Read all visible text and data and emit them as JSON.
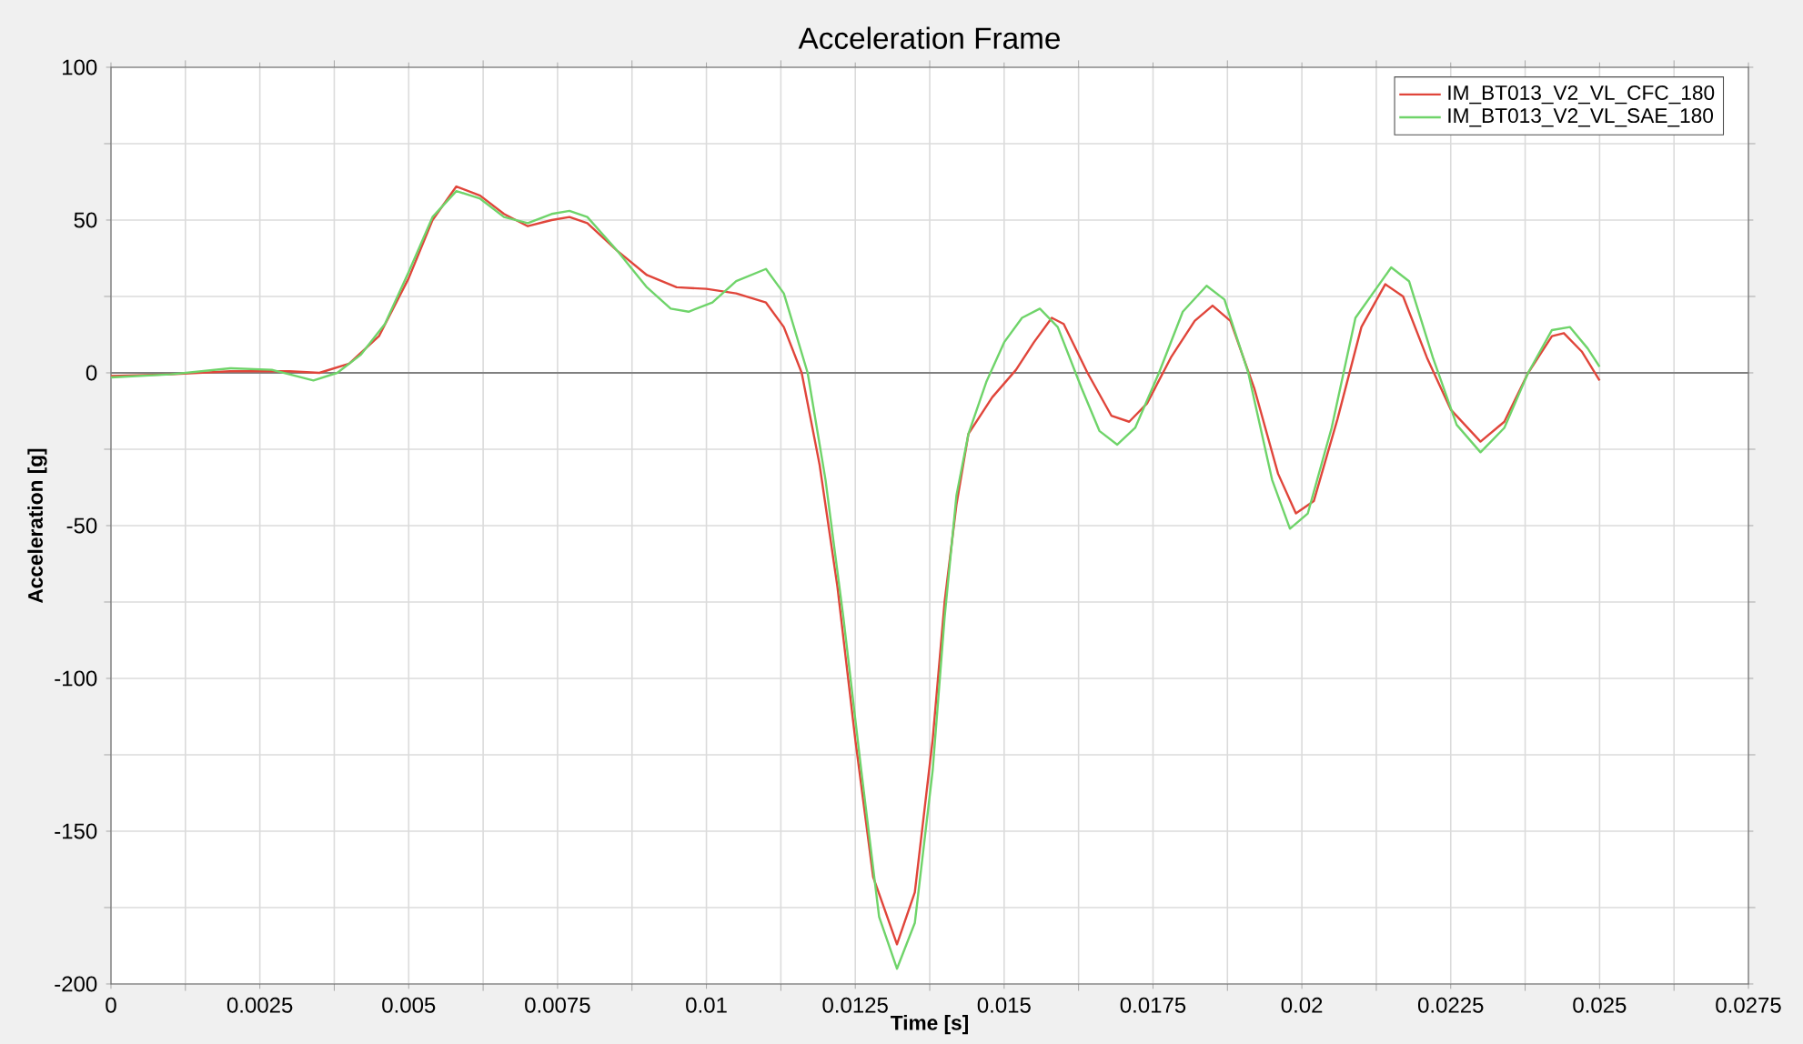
{
  "chart_data": {
    "type": "line",
    "title": "Acceleration Frame",
    "xlabel": "Time [s]",
    "ylabel": "Acceleration [g]",
    "xlim": [
      0,
      0.0275
    ],
    "ylim": [
      -200,
      100
    ],
    "xticks": [
      0,
      0.0025,
      0.005,
      0.0075,
      0.01,
      0.0125,
      0.015,
      0.0175,
      0.02,
      0.0225,
      0.025,
      0.0275
    ],
    "yticks": [
      -200,
      -150,
      -100,
      -50,
      0,
      50,
      100
    ],
    "grid": true,
    "legend": "top right",
    "marker": "none",
    "line_style": "solid",
    "ref_lines": [
      {
        "axis": "y",
        "value": 0,
        "color": "#808080"
      }
    ],
    "series": [
      {
        "name": "IM_BT013_V2_VL_CFC_180",
        "color": "#e0453a",
        "x": [
          0,
          0.001,
          0.002,
          0.003,
          0.0035,
          0.004,
          0.0045,
          0.005,
          0.0054,
          0.0058,
          0.0062,
          0.0066,
          0.007,
          0.0074,
          0.0077,
          0.008,
          0.0085,
          0.009,
          0.0095,
          0.01,
          0.0105,
          0.011,
          0.0113,
          0.0116,
          0.0119,
          0.0122,
          0.0125,
          0.0128,
          0.0132,
          0.0135,
          0.0138,
          0.014,
          0.0142,
          0.0144,
          0.0148,
          0.0152,
          0.0155,
          0.0158,
          0.016,
          0.0164,
          0.0168,
          0.0171,
          0.0174,
          0.0178,
          0.0182,
          0.0185,
          0.0188,
          0.0192,
          0.0196,
          0.0199,
          0.0202,
          0.0206,
          0.021,
          0.0214,
          0.0217,
          0.0221,
          0.0225,
          0.023,
          0.0234,
          0.0238,
          0.0242,
          0.0244,
          0.0247,
          0.025
        ],
        "values": [
          -1,
          -0.5,
          0.5,
          0.5,
          0,
          3,
          12,
          31,
          50,
          61,
          58,
          52,
          48,
          50,
          51,
          49,
          40,
          32,
          28,
          27.5,
          26,
          23,
          15,
          0,
          -30,
          -70,
          -120,
          -165,
          -187,
          -170,
          -120,
          -75,
          -43,
          -20,
          -8,
          1,
          10,
          18,
          16,
          0,
          -14,
          -16,
          -10,
          5,
          17,
          22,
          17,
          -5,
          -33,
          -46,
          -42,
          -15,
          15,
          29,
          25,
          5,
          -12,
          -22.5,
          -16,
          0,
          12,
          13,
          7,
          -2.5
        ]
      },
      {
        "name": "IM_BT013_V2_VL_SAE_180",
        "color": "#6fd46a",
        "x": [
          0,
          0.001,
          0.002,
          0.0027,
          0.0034,
          0.0038,
          0.0042,
          0.0046,
          0.005,
          0.0054,
          0.0058,
          0.0062,
          0.0066,
          0.007,
          0.0074,
          0.0077,
          0.008,
          0.0085,
          0.009,
          0.0094,
          0.0097,
          0.0101,
          0.0105,
          0.011,
          0.0113,
          0.0117,
          0.012,
          0.0123,
          0.0126,
          0.0129,
          0.0132,
          0.0135,
          0.0138,
          0.014,
          0.0142,
          0.0144,
          0.0147,
          0.015,
          0.0153,
          0.0156,
          0.0159,
          0.0163,
          0.0166,
          0.0169,
          0.0172,
          0.0176,
          0.018,
          0.0184,
          0.0187,
          0.0191,
          0.0195,
          0.0198,
          0.0201,
          0.0205,
          0.0209,
          0.0215,
          0.0218,
          0.0222,
          0.0226,
          0.023,
          0.0234,
          0.0238,
          0.0242,
          0.0245,
          0.0248,
          0.025
        ],
        "values": [
          -1.5,
          -0.5,
          1.5,
          1,
          -2.5,
          0,
          6,
          16,
          33,
          51,
          59.5,
          57,
          51,
          49,
          52,
          53,
          51,
          40,
          28,
          21,
          20,
          23,
          30,
          34,
          26,
          0,
          -35,
          -80,
          -130,
          -178,
          -195,
          -180,
          -130,
          -80,
          -40,
          -20,
          -3,
          10,
          18,
          21,
          15,
          -5,
          -19,
          -23.5,
          -18,
          0,
          20,
          28.5,
          24,
          0,
          -35,
          -51,
          -46,
          -18,
          18,
          34.5,
          30,
          5,
          -17,
          -26,
          -18,
          0,
          14,
          15,
          8,
          2
        ]
      }
    ]
  }
}
